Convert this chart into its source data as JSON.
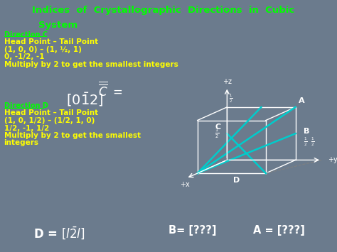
{
  "title_line1": "Indices  of  Crystallographic  Directions  in  Cubic",
  "title_line2": "System",
  "title_color": "#00FF00",
  "bg_color": "#6B7B8D",
  "text_color": "#FFFF00",
  "green_color": "#00FF00",
  "white_color": "#FFFFFF",
  "cyan_color": "#00CCCC",
  "dir_c_label": "Direction C",
  "dir_c_text1": "Head Point – Tail Point",
  "dir_c_text2": "(1, 0, 0) – (1, ½, 1)",
  "dir_c_text3": "0, -1/2, -1",
  "dir_c_text4": "Multiply by 2 to get the smallest integers",
  "dir_d_label": "Direction D",
  "dir_d_text1": "Head Point – Tail Point",
  "dir_d_text2": "(1, 0, 1/2) – (1/2, 1, 0)",
  "dir_d_text3": "1/2, -1, 1/2",
  "dir_d_text4": "Multiply by 2 to get the smallest",
  "dir_d_text5": "integers",
  "b_result": "B= [???]",
  "a_result": "A = [???]"
}
